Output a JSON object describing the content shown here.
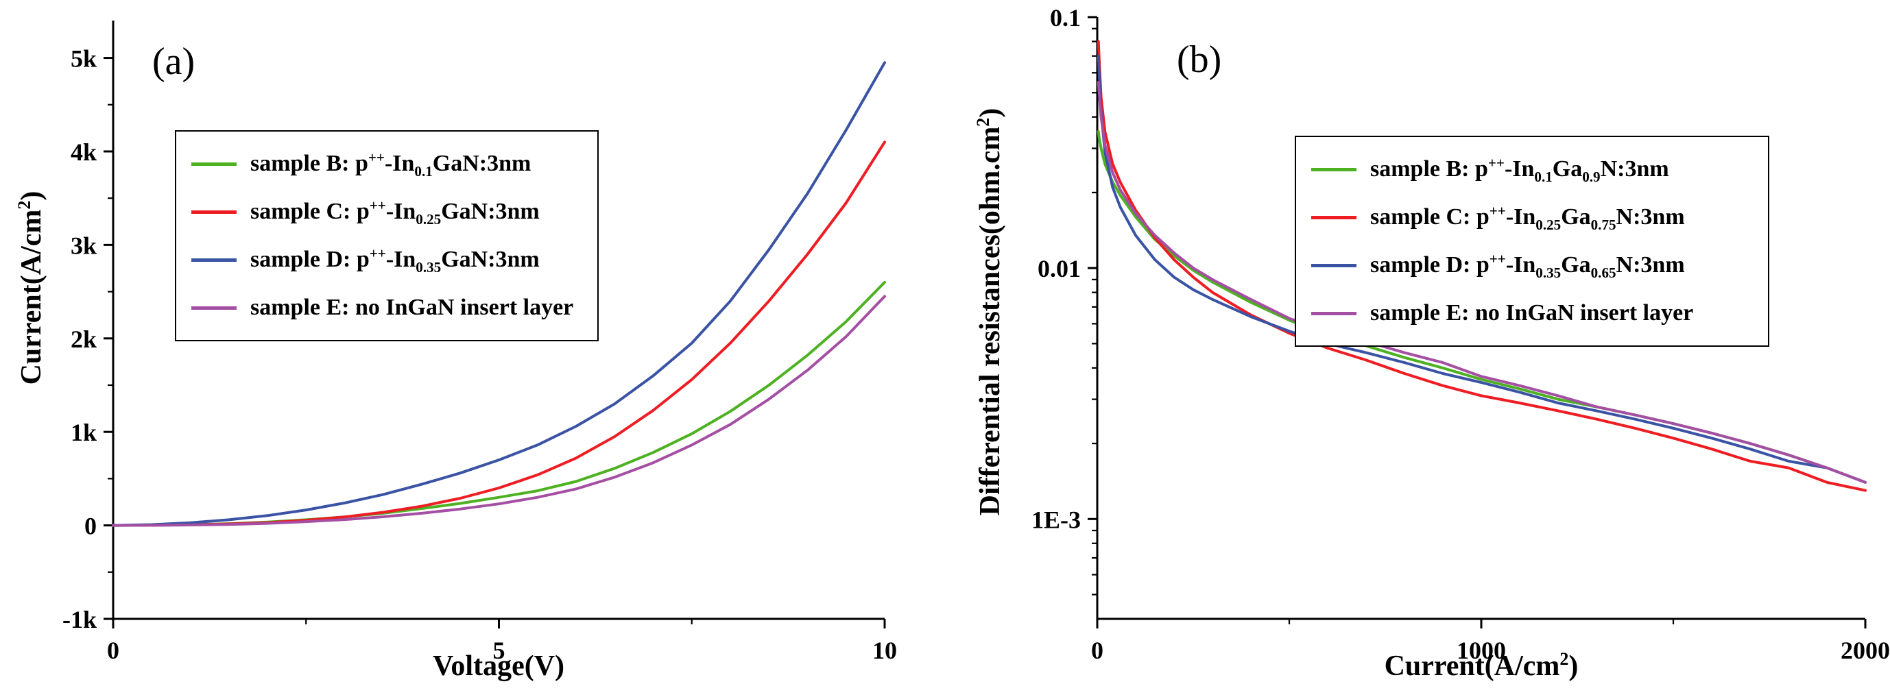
{
  "colors": {
    "green": "#4db122",
    "red": "#ee1d23",
    "blue": "#3a53a4",
    "purple": "#a44fa3",
    "axis": "#000000",
    "background": "#ffffff"
  },
  "chart_data": [
    {
      "type": "line",
      "title": "",
      "panel_label": "(a)",
      "xlabel_segments": [
        {
          "t": "Voltage(V)"
        }
      ],
      "ylabel_segments": [
        {
          "t": "Current(A/cm"
        },
        {
          "sup": "2"
        },
        {
          "t": ")"
        }
      ],
      "xlim": [
        0,
        10
      ],
      "ylim": [
        -1000,
        5400
      ],
      "ylog": false,
      "grid": false,
      "legend_position": "upper-left",
      "xticks": [
        {
          "v": 0,
          "label": "0"
        },
        {
          "v": 5,
          "label": "5"
        },
        {
          "v": 10,
          "label": "10"
        }
      ],
      "x_minor": [
        2.5,
        7.5
      ],
      "yticks": [
        {
          "v": -1000,
          "label": "-1k"
        },
        {
          "v": 0,
          "label": "0"
        },
        {
          "v": 1000,
          "label": "1k"
        },
        {
          "v": 2000,
          "label": "2k"
        },
        {
          "v": 3000,
          "label": "3k"
        },
        {
          "v": 4000,
          "label": "4k"
        },
        {
          "v": 5000,
          "label": "5k"
        }
      ],
      "y_minor": [
        -500,
        500,
        1500,
        2500,
        3500,
        4500
      ],
      "x": [
        0,
        0.5,
        1,
        1.5,
        2,
        2.5,
        3,
        3.5,
        4,
        4.5,
        5,
        5.5,
        6,
        6.5,
        7,
        7.5,
        8,
        8.5,
        9,
        9.5,
        10
      ],
      "series": [
        {
          "id": "sample-b",
          "color": "green",
          "y": [
            0,
            2,
            8,
            18,
            35,
            60,
            90,
            130,
            180,
            235,
            300,
            370,
            470,
            610,
            780,
            980,
            1220,
            1500,
            1820,
            2180,
            2600
          ]
        },
        {
          "id": "sample-c",
          "color": "red",
          "y": [
            0,
            2,
            6,
            15,
            30,
            55,
            90,
            140,
            205,
            290,
            400,
            540,
            720,
            950,
            1230,
            1560,
            1950,
            2400,
            2900,
            3450,
            4100
          ]
        },
        {
          "id": "sample-d",
          "color": "blue",
          "y": [
            0,
            8,
            28,
            60,
            105,
            165,
            240,
            330,
            440,
            560,
            700,
            860,
            1060,
            1300,
            1600,
            1950,
            2400,
            2950,
            3550,
            4230,
            4950
          ]
        },
        {
          "id": "sample-e",
          "color": "purple",
          "y": [
            0,
            1,
            4,
            10,
            22,
            40,
            62,
            92,
            130,
            175,
            230,
            300,
            390,
            515,
            670,
            860,
            1080,
            1350,
            1660,
            2020,
            2450
          ]
        }
      ],
      "legend": {
        "entries": [
          {
            "id": "sample-b",
            "color": "green",
            "segments": [
              {
                "t": "sample B: p"
              },
              {
                "sup": "++"
              },
              {
                "t": "-In"
              },
              {
                "sub": "0.1"
              },
              {
                "t": "GaN:3nm"
              }
            ]
          },
          {
            "id": "sample-c",
            "color": "red",
            "segments": [
              {
                "t": "sample C: p"
              },
              {
                "sup": "++"
              },
              {
                "t": "-In"
              },
              {
                "sub": "0.25"
              },
              {
                "t": "GaN:3nm"
              }
            ]
          },
          {
            "id": "sample-d",
            "color": "blue",
            "segments": [
              {
                "t": "sample D: p"
              },
              {
                "sup": "++"
              },
              {
                "t": "-In"
              },
              {
                "sub": "0.35"
              },
              {
                "t": "GaN:3nm"
              }
            ]
          },
          {
            "id": "sample-e",
            "color": "purple",
            "segments": [
              {
                "t": "sample E: no InGaN insert layer"
              }
            ]
          }
        ]
      }
    },
    {
      "type": "line",
      "title": "",
      "panel_label": "(b)",
      "xlabel_segments": [
        {
          "t": "Current(A/cm"
        },
        {
          "sup": "2"
        },
        {
          "t": ")"
        }
      ],
      "ylabel_segments": [
        {
          "t": "Differential resistances(ohm.cm"
        },
        {
          "sup": "2"
        },
        {
          "t": ")"
        }
      ],
      "xlim": [
        0,
        2000
      ],
      "ylim": [
        0.0004,
        0.1
      ],
      "ylog": true,
      "grid": false,
      "legend_position": "upper-right",
      "xticks": [
        {
          "v": 0,
          "label": "0"
        },
        {
          "v": 1000,
          "label": "1000"
        },
        {
          "v": 2000,
          "label": "2000"
        }
      ],
      "x_minor": [
        500,
        1500
      ],
      "yticks": [
        {
          "v": 0.1,
          "label": "0.1"
        },
        {
          "v": 0.01,
          "label": "0.01"
        },
        {
          "v": 0.001,
          "label": "1E-3"
        }
      ],
      "y_minor": [
        0.0005,
        0.0006,
        0.0007,
        0.0008,
        0.0009,
        0.002,
        0.003,
        0.004,
        0.005,
        0.006,
        0.007,
        0.008,
        0.009,
        0.02,
        0.03,
        0.04,
        0.05,
        0.06,
        0.07,
        0.08,
        0.09
      ],
      "x": [
        3,
        5,
        10,
        20,
        40,
        60,
        100,
        150,
        200,
        250,
        300,
        400,
        500,
        600,
        700,
        800,
        900,
        1000,
        1100,
        1200,
        1300,
        1400,
        1500,
        1600,
        1700,
        1800,
        1900,
        2000
      ],
      "series": [
        {
          "id": "sample-b",
          "color": "green",
          "y": [
            0.035,
            0.033,
            0.03,
            0.026,
            0.022,
            0.0195,
            0.016,
            0.013,
            0.0112,
            0.0098,
            0.0088,
            0.0073,
            0.0062,
            0.0054,
            0.0049,
            0.0044,
            0.004,
            0.0036,
            0.0033,
            0.003,
            0.0028,
            0.0026,
            0.0024,
            0.0022,
            0.002,
            0.0018,
            0.0016,
            0.0014
          ]
        },
        {
          "id": "sample-c",
          "color": "red",
          "y": [
            0.08,
            0.068,
            0.048,
            0.035,
            0.026,
            0.022,
            0.017,
            0.0132,
            0.0108,
            0.0092,
            0.008,
            0.0065,
            0.0055,
            0.0048,
            0.0043,
            0.0038,
            0.0034,
            0.0031,
            0.0029,
            0.0027,
            0.0025,
            0.0023,
            0.0021,
            0.0019,
            0.0017,
            0.0016,
            0.0014,
            0.0013
          ]
        },
        {
          "id": "sample-d",
          "color": "blue",
          "y": [
            0.07,
            0.06,
            0.042,
            0.029,
            0.021,
            0.0175,
            0.0135,
            0.0108,
            0.0092,
            0.0082,
            0.0075,
            0.0064,
            0.0056,
            0.005,
            0.0046,
            0.0042,
            0.0038,
            0.0035,
            0.0032,
            0.0029,
            0.0027,
            0.0025,
            0.0023,
            0.0021,
            0.0019,
            0.0017,
            0.0016,
            0.0014
          ]
        },
        {
          "id": "sample-e",
          "color": "purple",
          "y": [
            0.055,
            0.05,
            0.04,
            0.031,
            0.024,
            0.0205,
            0.0165,
            0.0135,
            0.0115,
            0.01,
            0.009,
            0.0075,
            0.0063,
            0.0056,
            0.0051,
            0.0046,
            0.0042,
            0.0037,
            0.0034,
            0.0031,
            0.0028,
            0.0026,
            0.0024,
            0.0022,
            0.002,
            0.0018,
            0.0016,
            0.0014
          ]
        }
      ],
      "legend": {
        "entries": [
          {
            "id": "sample-b",
            "color": "green",
            "segments": [
              {
                "t": "sample B: p"
              },
              {
                "sup": "++"
              },
              {
                "t": "-In"
              },
              {
                "sub": "0.1"
              },
              {
                "t": "Ga"
              },
              {
                "sub": "0.9"
              },
              {
                "t": "N:3nm"
              }
            ]
          },
          {
            "id": "sample-c",
            "color": "red",
            "segments": [
              {
                "t": "sample C: p"
              },
              {
                "sup": "++"
              },
              {
                "t": "-In"
              },
              {
                "sub": "0.25"
              },
              {
                "t": "Ga"
              },
              {
                "sub": "0.75"
              },
              {
                "t": "N:3nm"
              }
            ]
          },
          {
            "id": "sample-d",
            "color": "blue",
            "segments": [
              {
                "t": "sample D: p"
              },
              {
                "sup": "++"
              },
              {
                "t": "-In"
              },
              {
                "sub": "0.35"
              },
              {
                "t": "Ga"
              },
              {
                "sub": "0.65"
              },
              {
                "t": "N:3nm"
              }
            ]
          },
          {
            "id": "sample-e",
            "color": "purple",
            "segments": [
              {
                "t": "sample E: no InGaN insert layer"
              }
            ]
          }
        ]
      }
    }
  ]
}
